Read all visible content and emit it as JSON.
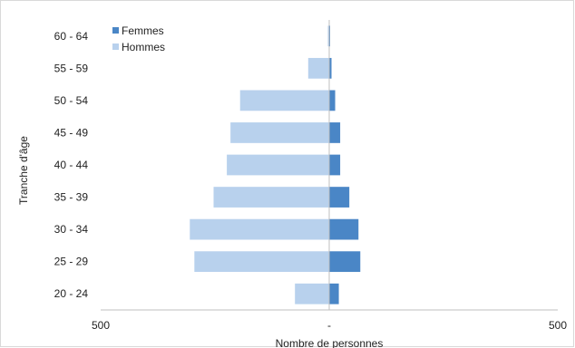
{
  "chart_data": {
    "type": "bar",
    "orientation": "horizontal",
    "layout": "population-pyramid",
    "title": "",
    "xlabel": "Nombre de personnes",
    "ylabel": "Tranche d'âge",
    "categories": [
      "20 - 24",
      "25 - 29",
      "30 - 34",
      "35 - 39",
      "40 - 44",
      "45 - 49",
      "50 - 54",
      "55 - 59",
      "60 - 64"
    ],
    "series": [
      {
        "name": "Femmes",
        "side": "right",
        "color": "#4a86c6",
        "values": [
          21,
          68,
          64,
          44,
          24,
          24,
          13,
          5,
          2
        ]
      },
      {
        "name": "Hommes",
        "side": "left",
        "color": "#b8d1ed",
        "values": [
          75,
          295,
          305,
          253,
          224,
          216,
          195,
          46,
          3
        ]
      }
    ],
    "xlim": [
      -500,
      500
    ],
    "xticks": [
      {
        "value": -500,
        "label": "500"
      },
      {
        "value": 0,
        "label": "-"
      },
      {
        "value": 500,
        "label": "500"
      }
    ],
    "grid": false,
    "legend": "top-left"
  }
}
